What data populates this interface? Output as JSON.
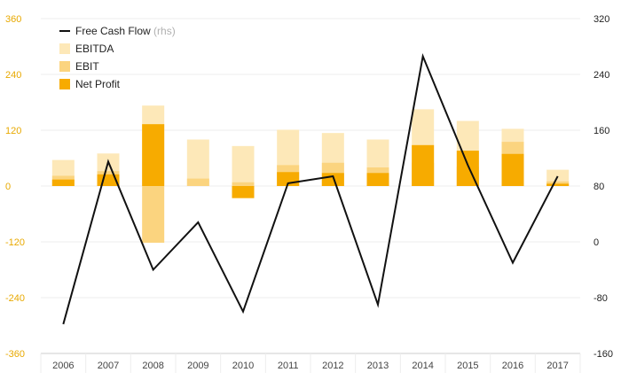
{
  "chart_data": {
    "type": "bar",
    "categories": [
      "2006",
      "2007",
      "2008",
      "2009",
      "2010",
      "2011",
      "2012",
      "2013",
      "2014",
      "2015",
      "2016",
      "2017"
    ],
    "series": [
      {
        "name": "EBITDA",
        "kind": "bar",
        "axis": "left",
        "color": "#fde8b8",
        "values": [
          56,
          70,
          173,
          100,
          86,
          121,
          114,
          100,
          165,
          140,
          123,
          35
        ]
      },
      {
        "name": "EBIT",
        "kind": "bar",
        "axis": "left",
        "color": "#fbd47f",
        "values": [
          22,
          32,
          -122,
          16,
          8,
          45,
          50,
          40,
          50,
          42,
          95,
          10
        ]
      },
      {
        "name": "Net Profit",
        "kind": "bar",
        "axis": "left",
        "color": "#f7ab00",
        "values": [
          14,
          25,
          133,
          0,
          -26,
          30,
          28,
          28,
          88,
          76,
          69,
          5
        ]
      },
      {
        "name": "Free Cash Flow",
        "name_suffix": "(rhs)",
        "kind": "line",
        "axis": "right",
        "color": "#111111",
        "values": [
          -118,
          115,
          -40,
          28,
          -100,
          84,
          94,
          -90,
          266,
          110,
          -30,
          94
        ]
      }
    ],
    "left_axis": {
      "min": -360,
      "max": 360,
      "ticks": [
        360,
        240,
        120,
        0,
        -120,
        -240,
        -360
      ]
    },
    "right_axis": {
      "min": -160,
      "max": 320,
      "ticks": [
        320,
        240,
        160,
        80,
        0,
        -80,
        -160
      ]
    },
    "grid": "horizontal",
    "legend": "top-left",
    "colors": {
      "left_axis_labels": "#e8a900",
      "grid": "#eeeeee",
      "axis": "#cccccc"
    }
  }
}
